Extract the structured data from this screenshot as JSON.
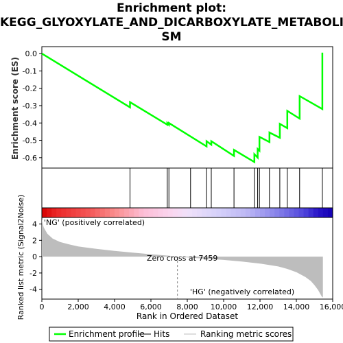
{
  "title_lines": [
    "Enrichment plot:",
    "KEGG_GLYOXYLATE_AND_DICARBOXYLATE_METABOLI",
    "SM"
  ],
  "colors": {
    "es_line": "#00ff00",
    "hits": "#000000",
    "metric_fill": "#bdbdbd",
    "zero_line": "#808080",
    "pos_label": "#ff0000",
    "neg_label": "#0000ff"
  },
  "chart_data": [
    {
      "type": "line",
      "name": "enrichment_profile",
      "ylabel": "Enrichment score (ES)",
      "ylim": [
        -0.66,
        0.04
      ],
      "yticks": [
        0.0,
        -0.1,
        -0.2,
        -0.3,
        -0.4,
        -0.5,
        -0.6
      ],
      "ytick_labels": [
        "0.0",
        "-0.1",
        "-0.2",
        "-0.3",
        "-0.4",
        "-0.5",
        "-0.6"
      ],
      "xlim": [
        0,
        16000
      ],
      "series": [
        {
          "name": "Enrichment profile",
          "x": [
            0,
            4850,
            4850,
            6900,
            6900,
            6990,
            6990,
            9060,
            9060,
            9320,
            9320,
            10570,
            10570,
            11690,
            11690,
            11870,
            11870,
            11970,
            11970,
            12520,
            12520,
            13090,
            13090,
            13500,
            13500,
            14180,
            14180,
            15430,
            15430
          ],
          "y": [
            0.0,
            -0.31,
            -0.28,
            -0.41,
            -0.4,
            -0.41,
            -0.4,
            -0.535,
            -0.505,
            -0.525,
            -0.505,
            -0.59,
            -0.555,
            -0.625,
            -0.58,
            -0.6,
            -0.55,
            -0.56,
            -0.48,
            -0.51,
            -0.455,
            -0.485,
            -0.405,
            -0.43,
            -0.33,
            -0.375,
            -0.245,
            -0.32,
            0.005
          ]
        }
      ]
    },
    {
      "type": "scatter",
      "name": "hits",
      "x": [
        4850,
        6900,
        6990,
        8180,
        9060,
        9320,
        10570,
        11690,
        11870,
        11970,
        12520,
        13090,
        13500,
        14180,
        15430
      ]
    },
    {
      "type": "area",
      "name": "ranked_list_metric",
      "ylabel": "Ranked list metric (Signal2Noise)",
      "xlabel": "Rank in Ordered Dataset",
      "ylim": [
        -5.2,
        4.8
      ],
      "yticks": [
        4,
        2,
        0,
        -2,
        -4
      ],
      "ytick_labels": [
        "4",
        "2",
        "0",
        "-2",
        "-4"
      ],
      "xlim": [
        0,
        16000
      ],
      "xticks": [
        0,
        2000,
        4000,
        6000,
        8000,
        10000,
        12000,
        14000,
        16000
      ],
      "xtick_labels": [
        "0",
        "2,000",
        "4,000",
        "6,000",
        "8,000",
        "10,000",
        "12,000",
        "14,000",
        "16,000"
      ],
      "series": [
        {
          "name": "Ranking metric scores",
          "x": [
            0,
            100,
            300,
            600,
            1000,
            1500,
            2000,
            3000,
            4000,
            5000,
            6000,
            7000,
            7459,
            8000,
            9000,
            10000,
            11000,
            12000,
            13000,
            13500,
            14000,
            14500,
            14800,
            15000,
            15200,
            15300,
            15400,
            15460
          ],
          "y": [
            4.6,
            3.6,
            2.8,
            2.2,
            1.8,
            1.5,
            1.25,
            0.95,
            0.7,
            0.5,
            0.3,
            0.12,
            0.0,
            -0.1,
            -0.25,
            -0.4,
            -0.6,
            -0.85,
            -1.2,
            -1.5,
            -1.9,
            -2.5,
            -3.0,
            -3.5,
            -4.1,
            -4.5,
            -4.9,
            -5.0
          ]
        }
      ],
      "annotations": {
        "zero_cross": "Zero cross at 7459",
        "pos_label": "'NG' (positively correlated)",
        "neg_label": "'HG' (negatively correlated)"
      }
    }
  ],
  "legend": {
    "items": [
      "Enrichment profile",
      "Hits",
      "Ranking metric scores"
    ]
  }
}
